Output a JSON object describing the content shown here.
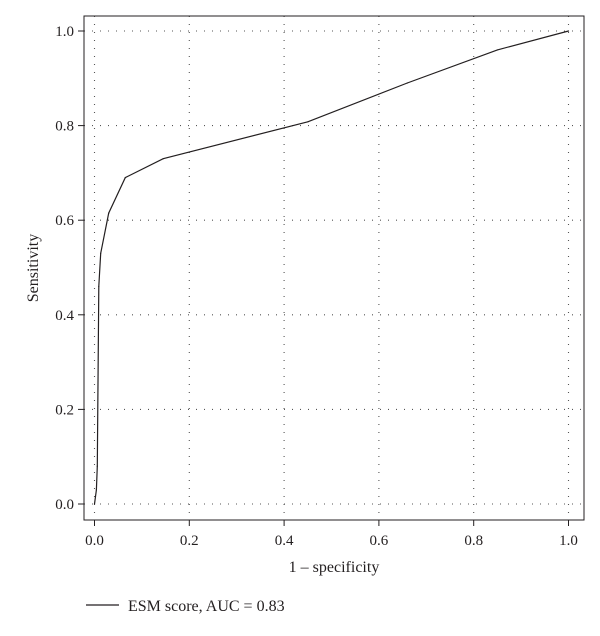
{
  "chart_data": {
    "type": "line",
    "title": "",
    "xlabel": "1 – specificity",
    "ylabel": "Sensitivity",
    "xlim": [
      0,
      1
    ],
    "ylim": [
      0,
      1
    ],
    "grid": true,
    "grid_style": "dotted",
    "legend_position": "bottom-left",
    "x_ticks": [
      {
        "value": 0,
        "label": "0.0"
      },
      {
        "value": 0.2,
        "label": "0.2"
      },
      {
        "value": 0.4,
        "label": "0.4"
      },
      {
        "value": 0.6,
        "label": "0.6"
      },
      {
        "value": 0.8,
        "label": "0.8"
      },
      {
        "value": 1.0,
        "label": "1.0"
      }
    ],
    "y_ticks": [
      {
        "value": 0,
        "label": "0.0"
      },
      {
        "value": 0.2,
        "label": "0.2"
      },
      {
        "value": 0.4,
        "label": "0.4"
      },
      {
        "value": 0.6,
        "label": "0.6"
      },
      {
        "value": 0.8,
        "label": "0.8"
      },
      {
        "value": 1.0,
        "label": "1.0"
      }
    ],
    "series": [
      {
        "name": "ESM score, AUC = 0.83",
        "color": "#231f20",
        "x": [
          0.0,
          0.004,
          0.006,
          0.009,
          0.013,
          0.03,
          0.065,
          0.145,
          0.45,
          0.66,
          0.85,
          1.0
        ],
        "y": [
          0.0,
          0.03,
          0.08,
          0.46,
          0.53,
          0.615,
          0.69,
          0.73,
          0.808,
          0.89,
          0.96,
          1.0
        ]
      }
    ]
  }
}
